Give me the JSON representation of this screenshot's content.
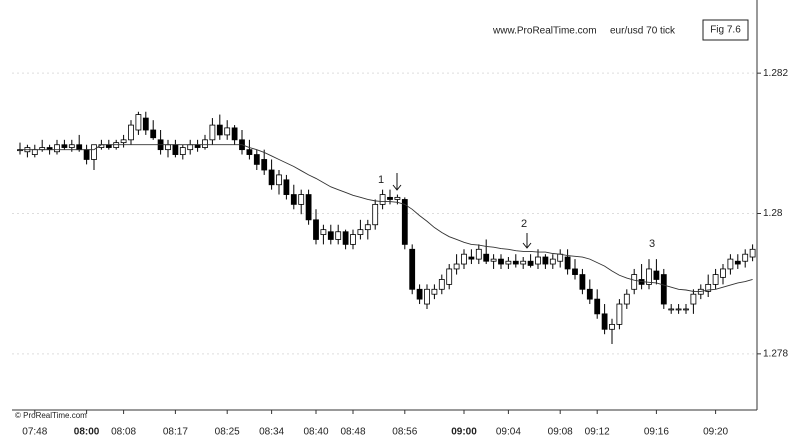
{
  "chart_data": {
    "type": "candlestick",
    "title": "Fig 7.6",
    "subtitle": "eur/usd 70 tick",
    "source": "www.ProRealTime.com",
    "copyright": "© ProRealTime.com",
    "annotations": [
      "1",
      "2",
      "3"
    ],
    "up_color": "#ffffff",
    "down_color": "#000000",
    "grid": true,
    "ylim": [
      1.2772,
      1.2829
    ],
    "yticks": [
      1.282,
      1.28,
      1.278
    ],
    "categories": [
      null,
      null,
      "07:48",
      null,
      null,
      null,
      null,
      null,
      null,
      "08:00",
      null,
      null,
      null,
      null,
      "08:08",
      null,
      null,
      null,
      null,
      null,
      null,
      "08:17",
      null,
      null,
      null,
      null,
      null,
      null,
      "08:25",
      null,
      null,
      null,
      null,
      null,
      "08:34",
      null,
      null,
      null,
      null,
      null,
      "08:40",
      null,
      null,
      null,
      null,
      "08:48",
      null,
      null,
      null,
      null,
      null,
      null,
      "08:56",
      null,
      null,
      null,
      null,
      null,
      null,
      null,
      "09:00",
      null,
      null,
      null,
      null,
      null,
      "09:04",
      null,
      null,
      null,
      null,
      null,
      null,
      "09:08",
      null,
      null,
      null,
      null,
      "09:12",
      null,
      null,
      null,
      null,
      null,
      null,
      null,
      "09:16",
      null,
      null,
      null,
      null,
      null,
      null,
      null,
      "09:20",
      null,
      null,
      null,
      null,
      null
    ],
    "open": [
      1.28091,
      1.28088,
      1.28084,
      1.28091,
      1.28094,
      1.28088,
      1.28098,
      1.28094,
      1.28098,
      1.28091,
      1.28077,
      1.28094,
      1.28098,
      1.28094,
      1.28101,
      1.28105,
      1.28119,
      1.28136,
      1.28119,
      1.28105,
      1.28091,
      1.28098,
      1.28084,
      1.28091,
      1.28098,
      1.28094,
      1.28105,
      1.28126,
      1.28112,
      1.28122,
      1.28105,
      1.28091,
      1.28084,
      1.28077,
      1.28062,
      1.28041,
      1.28048,
      1.28027,
      1.28013,
      1.28027,
      1.27991,
      1.2797,
      1.27974,
      1.27963,
      1.27974,
      1.27956,
      1.2797,
      1.27977,
      1.27984,
      1.28013,
      1.28023,
      1.2802,
      1.2802,
      1.27949,
      1.27892,
      1.27871,
      1.27885,
      1.27892,
      1.27899,
      1.27921,
      1.27928,
      1.27938,
      1.27935,
      1.27942,
      1.27932,
      1.27935,
      1.27928,
      1.27932,
      1.27928,
      1.27932,
      1.27928,
      1.27938,
      1.27928,
      1.27932,
      1.27938,
      1.27921,
      1.27913,
      1.27892,
      1.27878,
      1.27857,
      1.27835,
      1.27842,
      1.27871,
      1.27892,
      1.27906,
      1.27899,
      1.27918,
      1.27913,
      1.27864,
      1.27864,
      1.27864,
      1.27871,
      1.27885,
      1.27889,
      1.27899,
      1.27909,
      1.27921,
      1.27932,
      1.27932,
      1.27938
    ],
    "high": [
      1.28101,
      1.28098,
      1.28098,
      1.28105,
      1.28098,
      1.28105,
      1.28105,
      1.28105,
      1.28112,
      1.28098,
      1.28098,
      1.28105,
      1.28105,
      1.28105,
      1.28112,
      1.28133,
      1.28145,
      1.28145,
      1.28133,
      1.28119,
      1.28105,
      1.28105,
      1.28098,
      1.28105,
      1.28105,
      1.28112,
      1.28136,
      1.28141,
      1.28133,
      1.28126,
      1.28119,
      1.28105,
      1.28091,
      1.28091,
      1.28077,
      1.28062,
      1.28055,
      1.28041,
      1.28034,
      1.28034,
      1.28006,
      1.27984,
      1.27984,
      1.27984,
      1.27977,
      1.27977,
      1.27991,
      1.27991,
      1.2802,
      1.28034,
      1.28034,
      1.28027,
      1.28023,
      1.27956,
      1.27899,
      1.27899,
      1.27899,
      1.27913,
      1.27928,
      1.27942,
      1.27949,
      1.27949,
      1.27956,
      1.27963,
      1.27942,
      1.27942,
      1.27938,
      1.27942,
      1.27938,
      1.27942,
      1.27949,
      1.27942,
      1.27942,
      1.27949,
      1.27949,
      1.27935,
      1.27921,
      1.27906,
      1.27892,
      1.27871,
      1.2785,
      1.27878,
      1.27892,
      1.27921,
      1.27928,
      1.27935,
      1.27935,
      1.27921,
      1.27871,
      1.27871,
      1.27871,
      1.27892,
      1.27899,
      1.27913,
      1.27921,
      1.27928,
      1.27942,
      1.27942,
      1.27949,
      1.27956
    ],
    "low": [
      1.28084,
      1.2808,
      1.2808,
      1.28088,
      1.28084,
      1.28084,
      1.28091,
      1.28088,
      1.28088,
      1.2807,
      1.28062,
      1.28091,
      1.28091,
      1.28091,
      1.28094,
      1.28098,
      1.28112,
      1.28112,
      1.28105,
      1.28084,
      1.2808,
      1.2808,
      1.28077,
      1.28084,
      1.28088,
      1.28091,
      1.28098,
      1.28105,
      1.28105,
      1.28098,
      1.28084,
      1.28077,
      1.28062,
      1.28055,
      1.28034,
      1.28027,
      1.2802,
      1.28006,
      1.27999,
      1.27984,
      1.27956,
      1.27956,
      1.27956,
      1.27956,
      1.27949,
      1.27949,
      1.27963,
      1.27963,
      1.27977,
      1.28006,
      1.28013,
      1.28013,
      1.27949,
      1.27885,
      1.27871,
      1.27864,
      1.27878,
      1.27885,
      1.27892,
      1.27913,
      1.27921,
      1.27928,
      1.27928,
      1.27928,
      1.27921,
      1.27921,
      1.27921,
      1.27923,
      1.27921,
      1.27923,
      1.27921,
      1.27921,
      1.27921,
      1.27923,
      1.27913,
      1.27906,
      1.27885,
      1.27871,
      1.2785,
      1.27828,
      1.27814,
      1.27835,
      1.27864,
      1.27885,
      1.27892,
      1.27892,
      1.27899,
      1.27864,
      1.27857,
      1.27857,
      1.27857,
      1.27857,
      1.27878,
      1.27881,
      1.27892,
      1.27899,
      1.27913,
      1.27921,
      1.27923,
      1.27932
    ],
    "close": [
      1.28091,
      1.28094,
      1.28091,
      1.28094,
      1.28091,
      1.28098,
      1.28094,
      1.28098,
      1.28091,
      1.28077,
      1.28098,
      1.28098,
      1.28094,
      1.28101,
      1.28105,
      1.28126,
      1.28141,
      1.28119,
      1.28108,
      1.28091,
      1.28098,
      1.28084,
      1.28094,
      1.28098,
      1.28094,
      1.28105,
      1.28126,
      1.28112,
      1.28122,
      1.28105,
      1.28091,
      1.28084,
      1.2807,
      1.28062,
      1.28041,
      1.28055,
      1.28027,
      1.28013,
      1.28027,
      1.27991,
      1.27963,
      1.27977,
      1.27963,
      1.27974,
      1.27956,
      1.2797,
      1.27977,
      1.27984,
      1.28013,
      1.28027,
      1.2802,
      1.28023,
      1.27956,
      1.27892,
      1.27878,
      1.27892,
      1.27892,
      1.27906,
      1.27921,
      1.27928,
      1.27942,
      1.27935,
      1.27949,
      1.27932,
      1.27935,
      1.27928,
      1.27932,
      1.27928,
      1.27932,
      1.27926,
      1.27938,
      1.27928,
      1.27935,
      1.27942,
      1.27921,
      1.27913,
      1.27892,
      1.27878,
      1.27857,
      1.27835,
      1.27842,
      1.27871,
      1.27885,
      1.27913,
      1.27899,
      1.27921,
      1.27906,
      1.27871,
      1.27864,
      1.27864,
      1.27864,
      1.27885,
      1.27892,
      1.27899,
      1.27913,
      1.27921,
      1.27935,
      1.27928,
      1.27942,
      1.27949
    ],
    "ma": {
      "color": "#333333",
      "values": [
        1.28091,
        1.28091,
        1.28091,
        1.28091,
        1.28091,
        1.28091,
        1.28091,
        1.28091,
        1.28091,
        1.28091,
        1.28091,
        1.28098,
        1.28098,
        1.28098,
        1.28098,
        1.28098,
        1.28098,
        1.28098,
        1.28098,
        1.28098,
        1.28098,
        1.28098,
        1.28098,
        1.28098,
        1.28098,
        1.28098,
        1.28098,
        1.28098,
        1.28098,
        1.28098,
        1.28098,
        1.28094,
        1.28091,
        1.28087,
        1.28082,
        1.28077,
        1.28072,
        1.28067,
        1.28061,
        1.28055,
        1.2805,
        1.28044,
        1.28038,
        1.28034,
        1.2803,
        1.28026,
        1.28023,
        1.2802,
        1.28018,
        1.28017,
        1.28017,
        1.28016,
        1.28013,
        1.28006,
        1.27997,
        1.27989,
        1.2798,
        1.27973,
        1.27967,
        1.27963,
        1.27959,
        1.27956,
        1.27955,
        1.27953,
        1.27952,
        1.2795,
        1.27949,
        1.27947,
        1.27946,
        1.27946,
        1.27945,
        1.27945,
        1.27943,
        1.27942,
        1.2794,
        1.27939,
        1.27938,
        1.27935,
        1.2793,
        1.27925,
        1.27918,
        1.27912,
        1.27908,
        1.27905,
        1.27903,
        1.27902,
        1.27901,
        1.27898,
        1.27895,
        1.27892,
        1.27891,
        1.27889,
        1.27889,
        1.27891,
        1.27892,
        1.27895,
        1.27898,
        1.27901,
        1.27903,
        1.27906
      ]
    }
  }
}
